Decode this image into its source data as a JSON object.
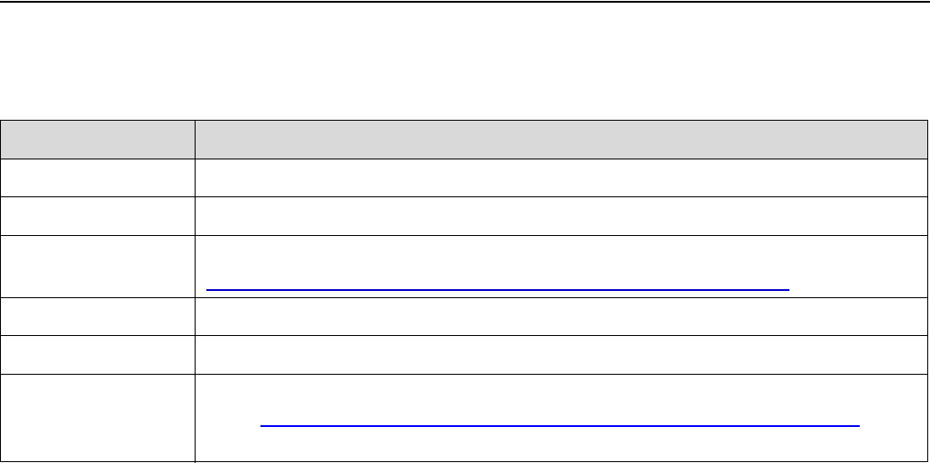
{
  "colors": {
    "header_background": "#d9d9d9",
    "border": "#000000",
    "link_underline_1": "#0000cc",
    "link_underline_2": "#0000ff"
  },
  "table": {
    "header": {
      "col1": "",
      "col2": ""
    },
    "rows": [
      {
        "col1": "",
        "col2": ""
      },
      {
        "col1": "",
        "col2": ""
      },
      {
        "col1": "",
        "col2": "",
        "link": ""
      },
      {
        "col1": "",
        "col2": ""
      },
      {
        "col1": "",
        "col2": ""
      },
      {
        "col1": "",
        "col2": "",
        "link": ""
      }
    ]
  }
}
